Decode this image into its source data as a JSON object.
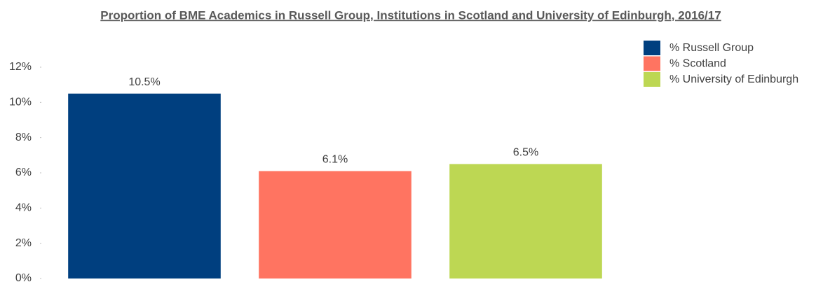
{
  "chart_data": {
    "type": "bar",
    "title": "Proportion of BME Academics in Russell Group, Institutions in Scotland and University of Edinburgh, 2016/17",
    "categories": [
      null
    ],
    "series": [
      {
        "name": "% Russell Group",
        "color": "#003f7f",
        "values": [
          10.5
        ],
        "value_labels": [
          "10.5%"
        ]
      },
      {
        "name": "% Scotland",
        "color": "#ff7461",
        "values": [
          6.1
        ],
        "value_labels": [
          "6.1%"
        ]
      },
      {
        "name": "% University of Edinburgh",
        "color": "#bdd753",
        "values": [
          6.5
        ],
        "value_labels": [
          "6.5%"
        ]
      }
    ],
    "ylim": [
      0,
      12
    ],
    "yticks": [
      {
        "value": 0,
        "label": "0%"
      },
      {
        "value": 2,
        "label": "2%"
      },
      {
        "value": 4,
        "label": "4%"
      },
      {
        "value": 6,
        "label": "6%"
      },
      {
        "value": 8,
        "label": "8%"
      },
      {
        "value": 10,
        "label": "10%"
      },
      {
        "value": 12,
        "label": "12%"
      }
    ],
    "grid": false,
    "legend": "top-right"
  }
}
